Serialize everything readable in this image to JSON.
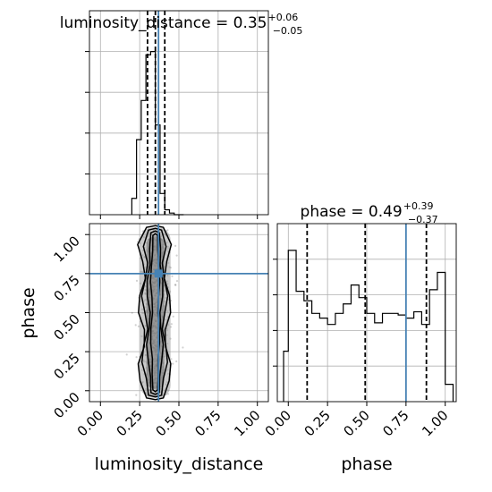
{
  "chart_data": {
    "type": "corner",
    "parameters": [
      "luminosity_distance",
      "phase"
    ],
    "truths": {
      "luminosity_distance": 0.37,
      "phase": 0.75
    },
    "ticks": [
      "0.00",
      "0.25",
      "0.50",
      "0.75",
      "1.00"
    ],
    "ylim": [
      -0.07,
      1.07
    ],
    "xlim": [
      -0.07,
      1.07
    ],
    "colors": {
      "truth": "#4682b4",
      "hist": "#000000",
      "grid": "#b0b0b0",
      "points": "#5a5a5a"
    },
    "panels": {
      "luminosity_distance_hist": {
        "title_prefix": "luminosity_distance = 0.35",
        "title_plus": "+0.06",
        "title_minus": "−0.05",
        "quantiles": [
          0.3,
          0.35,
          0.41
        ],
        "bin_edges": [
          0.2,
          0.23,
          0.26,
          0.29,
          0.32,
          0.35,
          0.38,
          0.41,
          0.44,
          0.47,
          0.5,
          0.53
        ],
        "counts": [
          0.1,
          0.46,
          0.7,
          0.98,
          1.0,
          0.55,
          0.13,
          0.03,
          0.01,
          0.0,
          0.0
        ]
      },
      "phase_hist": {
        "title_prefix": "phase = 0.49",
        "title_plus": "+0.39",
        "title_minus": "−0.37",
        "quantiles": [
          0.12,
          0.49,
          0.88
        ],
        "bin_edges": [
          -0.03,
          0.0,
          0.05,
          0.1,
          0.15,
          0.2,
          0.25,
          0.3,
          0.35,
          0.4,
          0.45,
          0.5,
          0.55,
          0.6,
          0.65,
          0.7,
          0.75,
          0.8,
          0.85,
          0.9,
          0.95,
          1.0,
          1.05
        ],
        "counts": [
          0.32,
          0.96,
          0.7,
          0.64,
          0.56,
          0.53,
          0.49,
          0.56,
          0.62,
          0.74,
          0.66,
          0.56,
          0.5,
          0.56,
          0.56,
          0.55,
          0.53,
          0.57,
          0.49,
          0.71,
          0.82,
          0.11
        ]
      },
      "joint": {
        "x_center": 0.35,
        "x_width": 0.045,
        "y_range": [
          -0.03,
          1.03
        ],
        "contour_levels": [
          0.6,
          0.8,
          0.95
        ]
      }
    },
    "xlabels": {
      "luminosity_distance": "luminosity_distance",
      "phase": "phase"
    },
    "ylabels": {
      "phase": "phase"
    }
  }
}
